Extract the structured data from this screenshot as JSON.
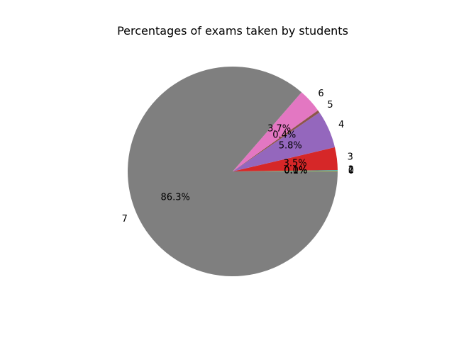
{
  "chart_data": {
    "type": "pie",
    "title": "Percentages of exams taken by students",
    "categories": [
      "0",
      "1",
      "2",
      "3",
      "4",
      "5",
      "6",
      "7"
    ],
    "values": [
      0.1,
      0.1,
      0.0,
      3.5,
      5.8,
      0.4,
      3.7,
      86.3
    ],
    "percent_labels": [
      "0.1%",
      "0.1%",
      "0.0%",
      "3.5%",
      "5.8%",
      "0.4%",
      "3.7%",
      "86.3%"
    ],
    "colors": [
      "#bcbd22",
      "#17becf",
      "#2ca02c",
      "#d62728",
      "#9467bd",
      "#8c564b",
      "#e377c2",
      "#7f7f7f"
    ]
  }
}
